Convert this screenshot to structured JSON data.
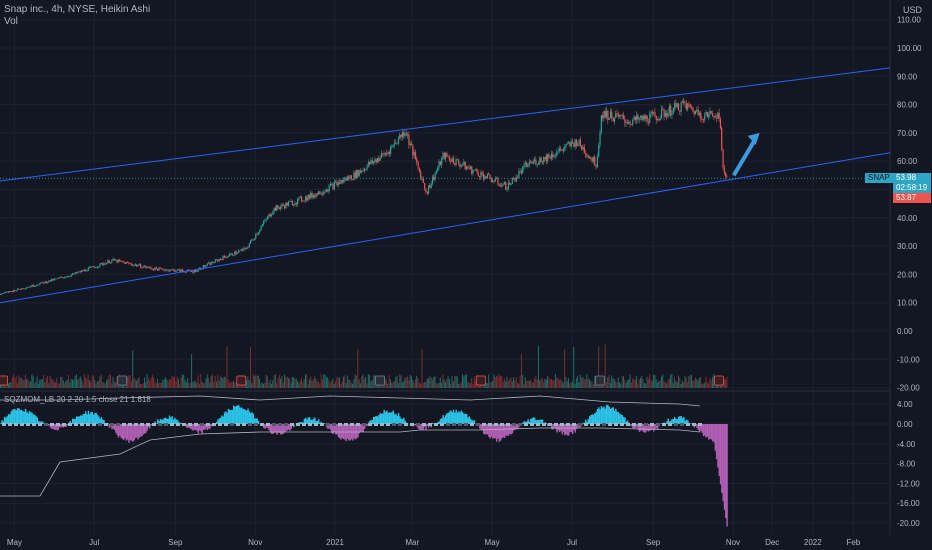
{
  "header": {
    "title": "Snap inc., 4h, NYSE, Heikin Ashi",
    "vol_label": "Vol"
  },
  "currency": "USD",
  "indicator_label": "SQZMOM_LB 20 2 20 1.5 close 21 1.618",
  "price_axis_ticks": [
    "110.00",
    "100.00",
    "90.00",
    "80.00",
    "70.00",
    "60.00",
    "50.00",
    "40.00",
    "30.00",
    "20.00",
    "10.00",
    "0.00",
    "-10.00",
    "-20.00"
  ],
  "indicator_axis_ticks": [
    "4.00",
    "0.00",
    "-4.00",
    "-8.00",
    "-12.00",
    "-16.00",
    "-20.00"
  ],
  "time_axis_ticks": [
    "May",
    "Jul",
    "Sep",
    "Nov",
    "2021",
    "Mar",
    "May",
    "Jul",
    "Sep",
    "Nov",
    "Dec",
    "2022",
    "Feb"
  ],
  "ticker_tag": {
    "symbol": "SNAP",
    "price": "53.98",
    "countdown": "02:58:19",
    "close": "53.87"
  },
  "colors": {
    "background": "#131722",
    "up": "#26a69a",
    "down": "#ef5350",
    "channel": "#2962ff",
    "sqz_pos": "#2bc4e8",
    "sqz_neg": "#b05fb5",
    "arrow": "#3a9be0"
  },
  "chart_data": {
    "type": "line",
    "title": "Snap inc., 4h, NYSE, Heikin Ashi",
    "x": [
      "2020-04-20",
      "2020-05-15",
      "2020-06-15",
      "2020-07-15",
      "2020-08-15",
      "2020-09-15",
      "2020-10-08",
      "2020-10-25",
      "2020-11-15",
      "2020-12-15",
      "2021-01-15",
      "2021-02-10",
      "2021-02-24",
      "2021-03-12",
      "2021-03-25",
      "2021-04-15",
      "2021-05-12",
      "2021-05-28",
      "2021-06-15",
      "2021-07-05",
      "2021-07-20",
      "2021-07-24",
      "2021-08-15",
      "2021-09-05",
      "2021-09-24",
      "2021-10-10",
      "2021-10-21",
      "2021-10-24",
      "2021-10-28"
    ],
    "series": [
      {
        "values": [
          13,
          16,
          20,
          25,
          22,
          21,
          26,
          29,
          43,
          48,
          55,
          63,
          71,
          49,
          62,
          57,
          51,
          59,
          62,
          67,
          59,
          77,
          74,
          76,
          80,
          76,
          77,
          57,
          54
        ]
      }
    ],
    "ylim": [
      -20,
      115
    ],
    "channel_lines": [
      {
        "from": [
          "2020-04-20",
          53
        ],
        "to": [
          "2022-03-01",
          93
        ]
      },
      {
        "from": [
          "2020-04-20",
          10
        ],
        "to": [
          "2022-03-01",
          63
        ]
      }
    ],
    "last_price": 53.98,
    "xlabel": "",
    "ylabel": "",
    "grid": true,
    "legend": "none"
  }
}
